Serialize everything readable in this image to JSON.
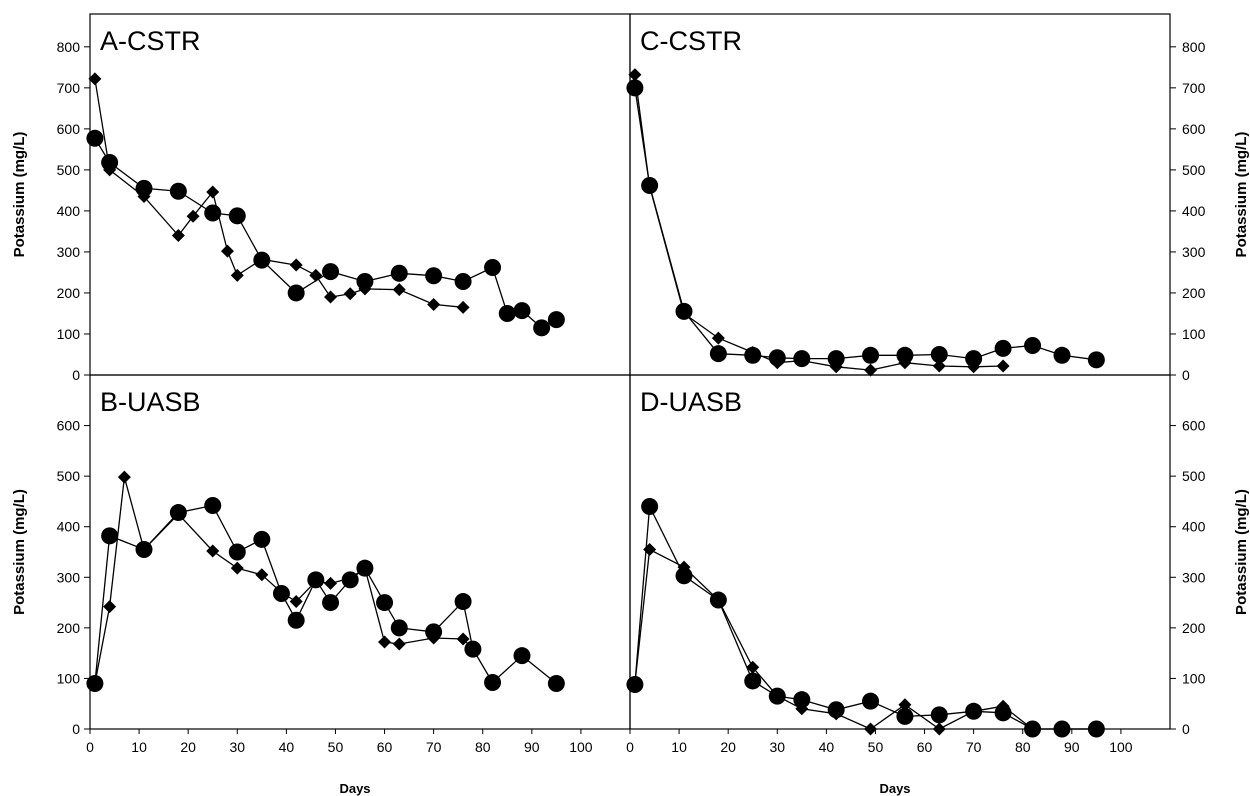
{
  "chart_data": [
    {
      "id": "A",
      "type": "line",
      "title": "A-CSTR",
      "xlabel": "",
      "ylabel": "Potassium (mg/L)",
      "xlim": [
        0,
        110
      ],
      "ylim": [
        0,
        880
      ],
      "yticks": [
        "0",
        "100",
        "200",
        "300",
        "400",
        "500",
        "600",
        "700",
        "800"
      ],
      "series": [
        {
          "marker": "diamond",
          "x": [
            1,
            4,
            11,
            18,
            21,
            25,
            28,
            30,
            35,
            42,
            46,
            49,
            53,
            56,
            63,
            70,
            76
          ],
          "y": [
            722,
            500,
            435,
            340,
            387,
            446,
            302,
            243,
            282,
            268,
            243,
            190,
            198,
            210,
            208,
            172,
            165
          ]
        },
        {
          "marker": "circle",
          "x": [
            1,
            4,
            11,
            18,
            25,
            30,
            35,
            42,
            49,
            56,
            63,
            70,
            76,
            82,
            85,
            88,
            92,
            95
          ],
          "y": [
            577,
            518,
            455,
            448,
            395,
            388,
            280,
            200,
            252,
            228,
            248,
            242,
            228,
            262,
            150,
            157,
            115,
            135
          ]
        }
      ]
    },
    {
      "id": "C",
      "type": "line",
      "title": "C-CSTR",
      "xlabel": "",
      "ylabel": "Potassium (mg/L)",
      "xlim": [
        0,
        110
      ],
      "ylim": [
        0,
        880
      ],
      "yticks": [
        "0",
        "100",
        "200",
        "300",
        "400",
        "500",
        "600",
        "700",
        "800"
      ],
      "series": [
        {
          "marker": "diamond",
          "x": [
            1,
            4,
            11,
            18,
            25,
            30,
            35,
            42,
            49,
            56,
            63,
            70,
            76
          ],
          "y": [
            732,
            460,
            150,
            90,
            55,
            30,
            35,
            20,
            12,
            30,
            22,
            20,
            22
          ]
        },
        {
          "marker": "circle",
          "x": [
            1,
            4,
            11,
            18,
            25,
            30,
            35,
            42,
            49,
            56,
            63,
            70,
            76,
            82,
            88,
            95
          ],
          "y": [
            700,
            462,
            155,
            52,
            48,
            42,
            40,
            40,
            48,
            48,
            50,
            40,
            65,
            72,
            48,
            37
          ]
        }
      ]
    },
    {
      "id": "B",
      "type": "line",
      "title": "B-UASB",
      "xlabel": "Days",
      "ylabel": "Potassium (mg/L)",
      "xlim": [
        0,
        110
      ],
      "ylim": [
        0,
        700
      ],
      "yticks": [
        "0",
        "100",
        "200",
        "300",
        "400",
        "500",
        "600"
      ],
      "xticks": [
        "0",
        "10",
        "20",
        "30",
        "40",
        "50",
        "60",
        "70",
        "80",
        "90",
        "100"
      ],
      "series": [
        {
          "marker": "diamond",
          "x": [
            1,
            4,
            7,
            11,
            18,
            25,
            30,
            35,
            39,
            42,
            46,
            49,
            53,
            56,
            60,
            63,
            70,
            76,
            78
          ],
          "y": [
            90,
            242,
            498,
            355,
            425,
            352,
            318,
            305,
            270,
            252,
            292,
            288,
            298,
            318,
            172,
            168,
            180,
            178,
            158
          ]
        },
        {
          "marker": "circle",
          "x": [
            1,
            4,
            11,
            18,
            25,
            30,
            35,
            39,
            42,
            46,
            49,
            53,
            56,
            60,
            63,
            70,
            76,
            78,
            82,
            88,
            95
          ],
          "y": [
            90,
            382,
            355,
            428,
            442,
            350,
            375,
            268,
            215,
            295,
            250,
            295,
            318,
            250,
            200,
            192,
            252,
            158,
            92,
            145,
            90
          ]
        }
      ]
    },
    {
      "id": "D",
      "type": "line",
      "title": "D-UASB",
      "xlabel": "Days",
      "ylabel": "Potassium (mg/L)",
      "xlim": [
        0,
        110
      ],
      "ylim": [
        0,
        700
      ],
      "yticks": [
        "0",
        "100",
        "200",
        "300",
        "400",
        "500",
        "600"
      ],
      "xticks": [
        "0",
        "10",
        "20",
        "30",
        "40",
        "50",
        "60",
        "70",
        "80",
        "90",
        "100"
      ],
      "series": [
        {
          "marker": "diamond",
          "x": [
            1,
            4,
            11,
            18,
            25,
            30,
            35,
            42,
            49,
            56,
            63,
            70,
            76,
            82,
            88,
            95
          ],
          "y": [
            90,
            355,
            320,
            255,
            122,
            65,
            40,
            30,
            0,
            48,
            0,
            35,
            45,
            0,
            0,
            0
          ]
        },
        {
          "marker": "circle",
          "x": [
            1,
            4,
            11,
            18,
            25,
            30,
            35,
            42,
            49,
            56,
            63,
            70,
            76,
            82,
            88,
            95
          ],
          "y": [
            88,
            440,
            303,
            255,
            95,
            65,
            58,
            38,
            55,
            25,
            28,
            35,
            32,
            0,
            0,
            0
          ]
        }
      ]
    }
  ]
}
